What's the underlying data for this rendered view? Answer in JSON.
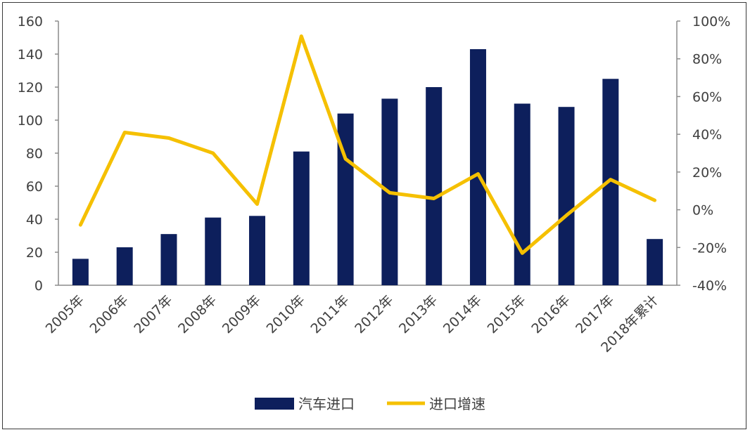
{
  "chart_data": {
    "type": "bar+line",
    "title": "",
    "categories": [
      "2005年",
      "2006年",
      "2007年",
      "2008年",
      "2009年",
      "2010年",
      "2011年",
      "2012年",
      "2013年",
      "2014年",
      "2015年",
      "2016年",
      "2017年",
      "2018年累计"
    ],
    "series": [
      {
        "name": "汽车进口",
        "type": "bar",
        "axis": "left",
        "color": "#0d1f5c",
        "values": [
          16,
          23,
          31,
          41,
          42,
          81,
          104,
          113,
          120,
          143,
          110,
          108,
          125,
          28
        ]
      },
      {
        "name": "进口增速",
        "type": "line",
        "axis": "right",
        "color": "#f5c000",
        "values": [
          -8,
          41,
          38,
          30,
          3,
          92,
          27,
          9,
          6,
          19,
          -23,
          -3,
          16,
          5
        ]
      }
    ],
    "y_left": {
      "ylim": [
        0,
        160
      ],
      "ticks": [
        "0",
        "20",
        "40",
        "60",
        "80",
        "100",
        "120",
        "140",
        "160"
      ]
    },
    "y_right": {
      "ylim": [
        -40,
        100
      ],
      "unit": "%",
      "ticks": [
        "-40%",
        "-20%",
        "0%",
        "20%",
        "40%",
        "60%",
        "80%",
        "100%"
      ]
    },
    "grid": false,
    "legend_position": "bottom-center"
  }
}
